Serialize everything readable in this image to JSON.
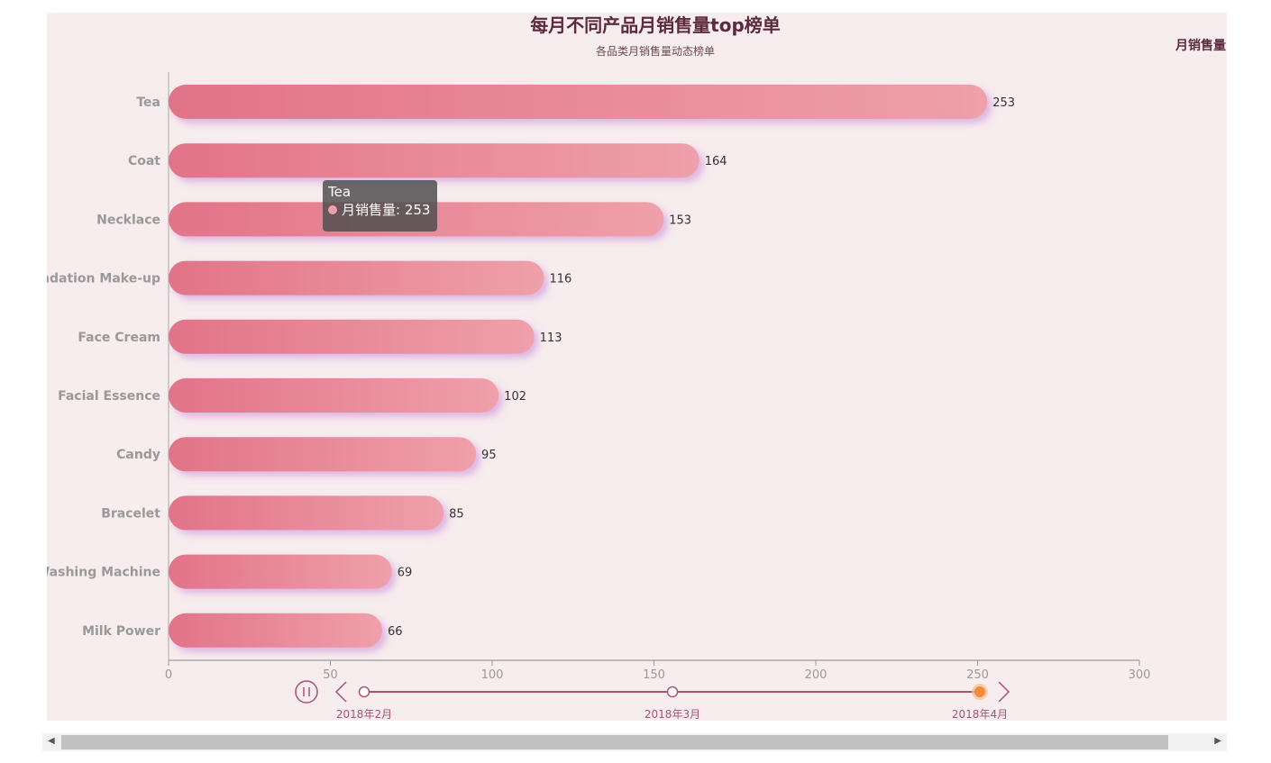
{
  "chart_data": {
    "type": "bar",
    "orientation": "horizontal",
    "title": "每月不同产品月销售量top榜单",
    "subtitle": "各品类月销售量动态榜单",
    "legend": "月销售量",
    "legend_placement": "top-right",
    "categories": [
      "Tea",
      "Coat",
      "Necklace",
      "Foundation Make-up",
      "Face Cream",
      "Facial Essence",
      "Candy",
      "Bracelet",
      "Washing Machine",
      "Milk Power"
    ],
    "series": [
      {
        "name": "月销售量",
        "values": [
          253,
          164,
          153,
          116,
          113,
          102,
          95,
          85,
          69,
          66
        ]
      }
    ],
    "xlim": [
      0,
      300
    ],
    "xticks": [
      "0",
      "50",
      "100",
      "150",
      "200",
      "250",
      "300"
    ],
    "grid": false,
    "colors": {
      "bar_start": "#e27389",
      "bar_end": "#efa0aa",
      "title": "#5c2a3e",
      "timeline": "#a8556b",
      "active": "#f08c3a"
    }
  },
  "tooltip": {
    "title": "Tea",
    "label": "月销售量: 253"
  },
  "timeline": {
    "labels": [
      "2018年2月",
      "2018年3月",
      "2018年4月"
    ],
    "current": "2018年4月",
    "playing": true
  }
}
